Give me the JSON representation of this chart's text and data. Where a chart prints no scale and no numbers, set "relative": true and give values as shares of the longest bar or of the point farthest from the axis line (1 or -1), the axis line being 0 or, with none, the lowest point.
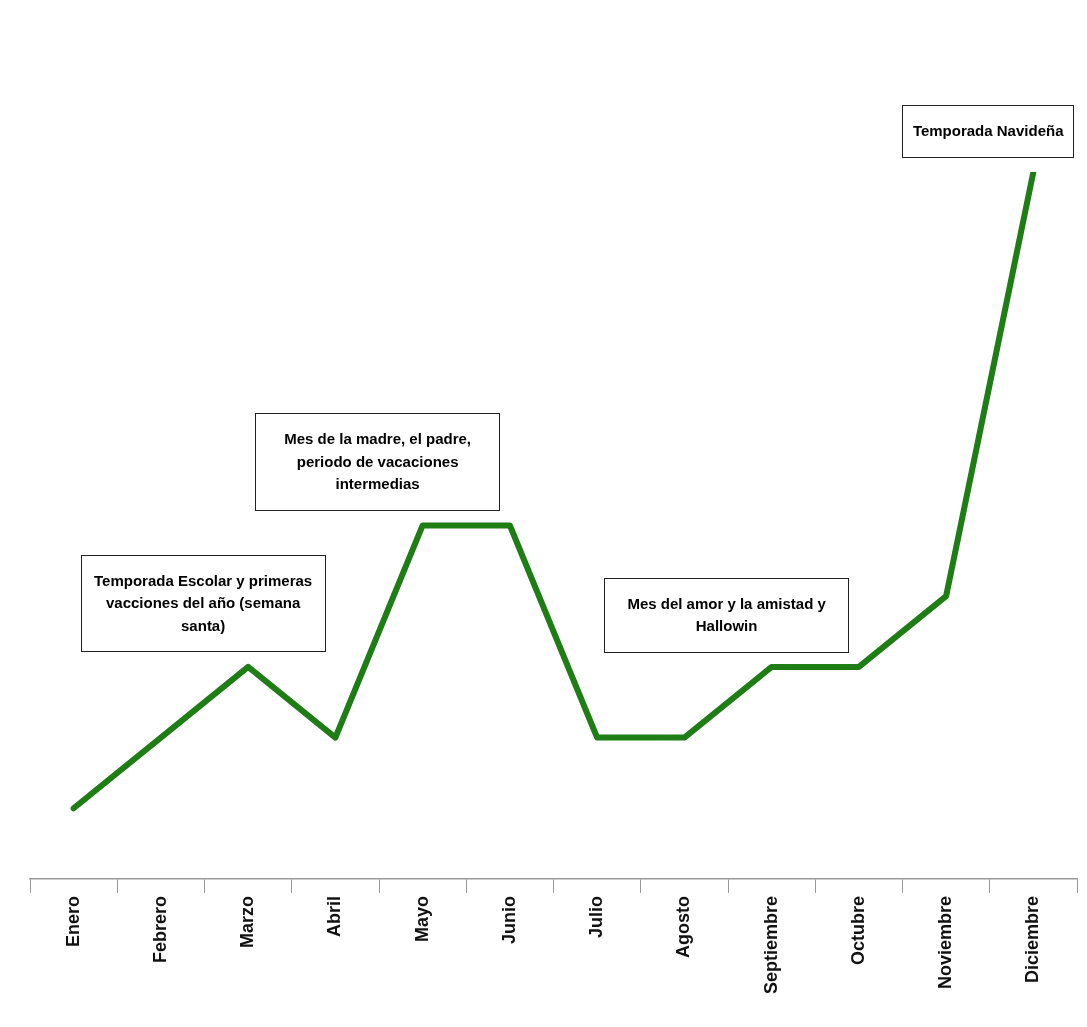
{
  "chart_data": {
    "type": "line",
    "relative": true,
    "categories": [
      "Enero",
      "Febrero",
      "Marzo",
      "Abril",
      "Mayo",
      "Junio",
      "Julio",
      "Agosto",
      "Septiembre",
      "Octubre",
      "Noviembre",
      "Diciembre"
    ],
    "series": [
      {
        "color": "#1e7d14",
        "values": [
          0.1,
          0.2,
          0.3,
          0.2,
          0.5,
          0.5,
          0.2,
          0.2,
          0.3,
          0.3,
          0.4,
          1
        ]
      }
    ],
    "marker": "none",
    "legend": false,
    "grid": false,
    "annotations": [
      {
        "text": "Temporada Escolar y primeras vacciones del año (semana santa)",
        "x": "Marzo",
        "y": 0.3
      },
      {
        "text": "Mes de la madre, el padre, periodo de vacaciones intermedias",
        "x": "Mayo",
        "y": 0.5
      },
      {
        "text": "Mes del amor y la amistad y Hallowin",
        "x": "Septiembre",
        "y": 0.3
      },
      {
        "text": "Temporada Navideña",
        "x": "Diciembre",
        "y": 1
      }
    ]
  }
}
